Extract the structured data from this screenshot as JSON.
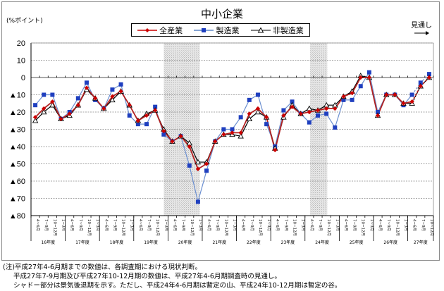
{
  "chart_data": {
    "type": "line",
    "title": "中小企業",
    "ylabel": "(%ポイント)",
    "xlabel": "",
    "ylim": [
      -80,
      20
    ],
    "yticks": [
      20,
      10,
      0,
      -10,
      -20,
      -30,
      -40,
      -50,
      -60,
      -70,
      -80
    ],
    "ytick_labels": [
      "20",
      "10",
      "0",
      "▲10",
      "▲20",
      "▲30",
      "▲40",
      "▲50",
      "▲60",
      "▲70",
      "▲80"
    ],
    "grid": true,
    "legend_position": "top",
    "fiscal_years": [
      "16年度",
      "17年度",
      "18年度",
      "19年度",
      "20年度",
      "21年度",
      "22年度",
      "23年度",
      "24年度",
      "25年度",
      "26年度",
      "27年度"
    ],
    "quarter_labels": [
      "4~6月",
      "7~9月",
      "10~12月",
      "1~3月"
    ],
    "x": [
      "16年度 4~6月",
      "16年度 7~9月",
      "16年度 10~12月",
      "16年度 1~3月",
      "17年度 4~6月",
      "17年度 7~9月",
      "17年度 10~12月",
      "17年度 1~3月",
      "18年度 4~6月",
      "18年度 7~9月",
      "18年度 10~12月",
      "18年度 1~3月",
      "19年度 4~6月",
      "19年度 7~9月",
      "19年度 10~12月",
      "19年度 1~3月",
      "20年度 4~6月",
      "20年度 7~9月",
      "20年度 10~12月",
      "20年度 1~3月",
      "21年度 4~6月",
      "21年度 7~9月",
      "21年度 10~12月",
      "21年度 1~3月",
      "22年度 4~6月",
      "22年度 7~9月",
      "22年度 10~12月",
      "22年度 1~3月",
      "23年度 4~6月",
      "23年度 7~9月",
      "23年度 10~12月",
      "23年度 1~3月",
      "24年度 4~6月",
      "24年度 7~9月",
      "24年度 10~12月",
      "24年度 1~3月",
      "25年度 4~6月",
      "25年度 7~9月",
      "25年度 10~12月",
      "25年度 1~3月",
      "26年度 4~6月",
      "26年度 7~9月",
      "26年度 10~12月",
      "26年度 1~3月",
      "27年度 4~6月",
      "27年度 7~9月",
      "27年度 10~12月"
    ],
    "series": [
      {
        "name": "全産業",
        "color": "#cc0000",
        "marker": "diamond",
        "values": [
          -23,
          -18,
          -14,
          -24,
          -21,
          -16,
          -6,
          -12,
          -18,
          -11,
          -8,
          -16,
          -25,
          -22,
          -19,
          -31,
          -37,
          -34,
          -40,
          -53,
          -50,
          -37,
          -33,
          -32,
          -32,
          -21,
          -18,
          -23,
          -42,
          -22,
          -17,
          -21,
          -20,
          -19,
          -18,
          -18,
          -11,
          -9,
          0,
          0,
          -22,
          -10,
          -10,
          -15,
          -14,
          -5,
          0
        ]
      },
      {
        "name": "製造業",
        "color": "#1f3fbf",
        "marker": "square",
        "values": [
          -16,
          -10,
          -10,
          -24,
          -20,
          -12,
          -3,
          -13,
          -18,
          -7,
          -4,
          -22,
          -27,
          -27,
          -17,
          -33,
          -37,
          -34,
          -51,
          -72,
          -54,
          -37,
          -30,
          -30,
          -23,
          -13,
          -10,
          -27,
          -40,
          -19,
          -14,
          -21,
          -26,
          -22,
          -21,
          -29,
          -13,
          -13,
          -5,
          3,
          -20,
          -10,
          -10,
          -16,
          -10,
          -3,
          2
        ]
      },
      {
        "name": "非製造業",
        "color": "#000000",
        "marker": "triangle-open",
        "values": [
          -25,
          -20,
          -16,
          -24,
          -22,
          -16,
          -7,
          -12,
          -18,
          -13,
          -8,
          -16,
          -25,
          -21,
          -19,
          -30,
          -37,
          -34,
          -38,
          -49,
          -49,
          -37,
          -33,
          -33,
          -34,
          -24,
          -20,
          -23,
          -41,
          -23,
          -16,
          -21,
          -18,
          -19,
          -16,
          -16,
          -11,
          -8,
          1,
          0,
          -22,
          -10,
          -10,
          -15,
          -15,
          -5,
          0
        ]
      }
    ],
    "shaded_periods": [
      {
        "from_index": 15.5,
        "to_index": 19.7,
        "label": "景気後退期"
      },
      {
        "from_index": 32.6,
        "to_index": 34.6,
        "label": "暫定の山〜暫定の谷"
      }
    ],
    "forecast_from_index": 44,
    "annotations": [
      "見通し →"
    ]
  },
  "title": "中小企業",
  "unit_label": "(%ポイント)",
  "legend": [
    "全産業",
    "製造業",
    "非製造業"
  ],
  "forecast_label": "見通し",
  "notes": [
    "(注)平成27年4-6月期までの数値は、各調査期における現状判断。",
    "平成27年7-9月期及び平成27年10-12月期の数値は、平成27年4-6月期調査時の見通し。",
    "シャドー部分は景気後退期を示す。ただし、平成24年4-6月期は暫定の山、平成24年10-12月期は暫定の谷。"
  ]
}
